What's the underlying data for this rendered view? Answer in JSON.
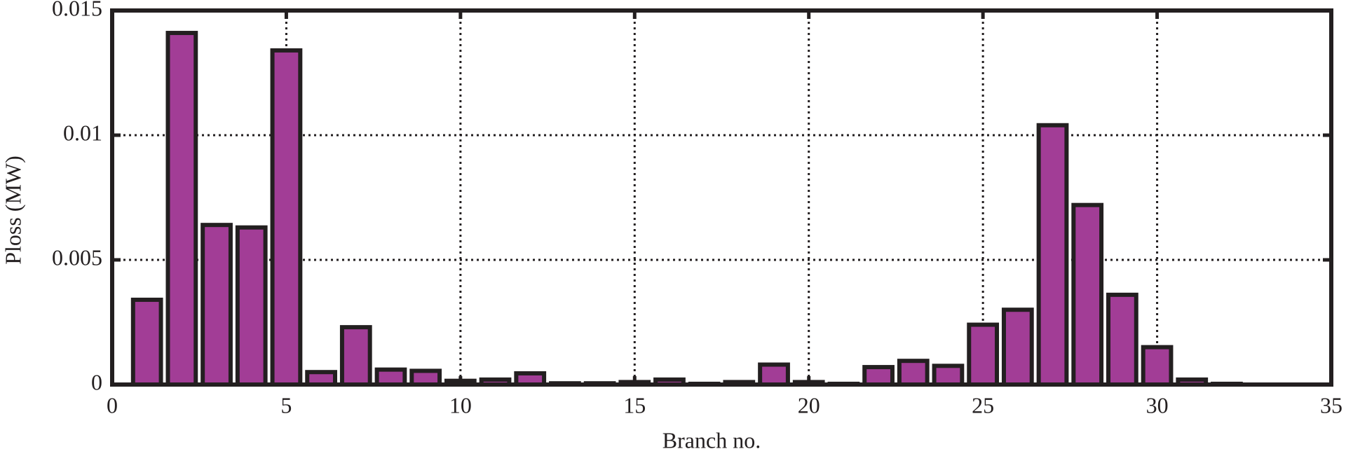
{
  "chart_data": {
    "type": "bar",
    "xlabel": "Branch no.",
    "ylabel": "Ploss (MW)",
    "x": [
      1,
      2,
      3,
      4,
      5,
      6,
      7,
      8,
      9,
      10,
      11,
      12,
      13,
      14,
      15,
      16,
      17,
      18,
      19,
      20,
      21,
      22,
      23,
      24,
      25,
      26,
      27,
      28,
      29,
      30,
      31,
      32
    ],
    "values": [
      0.0034,
      0.0141,
      0.0064,
      0.0063,
      0.0134,
      0.0005,
      0.0023,
      0.0006,
      0.00055,
      0.00015,
      0.0002,
      0.00045,
      5e-05,
      5e-05,
      0.0001,
      0.0002,
      3e-05,
      0.0001,
      0.0008,
      0.0001,
      3e-05,
      0.0007,
      0.00095,
      0.00075,
      0.0024,
      0.003,
      0.0104,
      0.0072,
      0.0036,
      0.0015,
      0.0002,
      3e-05
    ],
    "color": "#a23d96",
    "xlim": [
      0,
      35
    ],
    "xticks": [
      0,
      5,
      10,
      15,
      20,
      25,
      30,
      35
    ],
    "ylim": [
      0,
      0.015
    ],
    "yticks": [
      0,
      0.005,
      0.01,
      0.015
    ],
    "grid": true
  }
}
